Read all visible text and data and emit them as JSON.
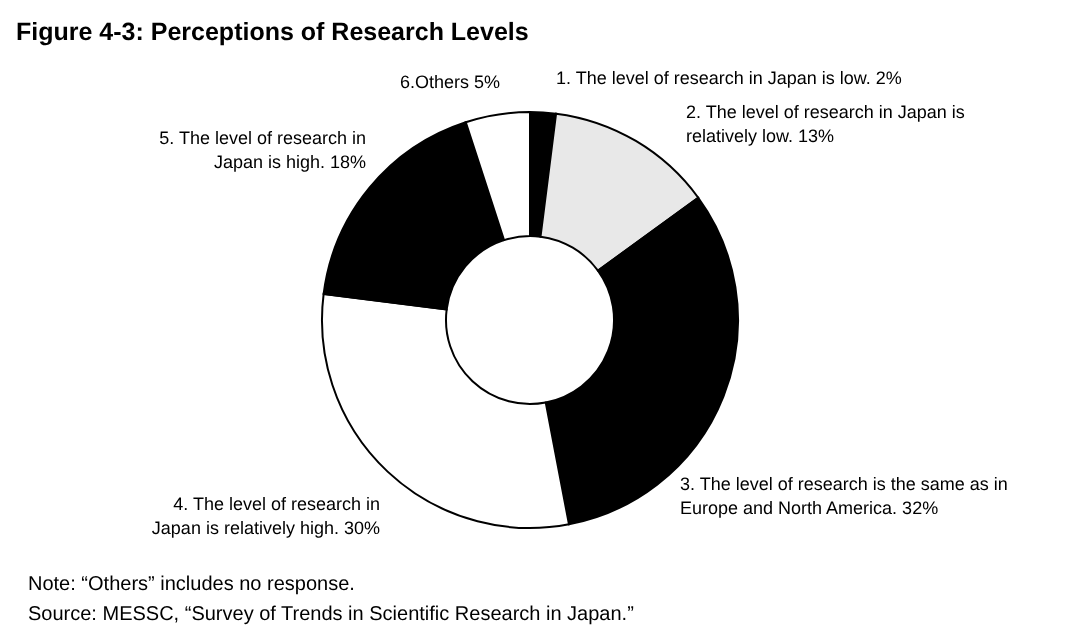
{
  "chart_data": {
    "type": "donut",
    "title": "Figure 4-3: Perceptions of Research Levels",
    "categories": [
      "1. The level of research in Japan is low.",
      "2. The level of research in Japan is relatively low.",
      "3. The level of research is the same as in Europe and North America.",
      "4. The level of research in Japan is relatively high.",
      "5. The level of research in Japan is high.",
      "6.Others"
    ],
    "values": [
      2,
      13,
      32,
      30,
      18,
      5
    ],
    "value_labels": [
      "2%",
      "13%",
      "32%",
      "30%",
      "18%",
      "5%"
    ],
    "colors": [
      "#000000",
      "#e8e8e8",
      "#000000",
      "#ffffff",
      "#000000",
      "#ffffff"
    ],
    "legend": false,
    "annotations": [
      "Note: “Others” includes no response.",
      "Source: MESSC, “Survey of Trends in Scientific Research in Japan.”"
    ]
  }
}
